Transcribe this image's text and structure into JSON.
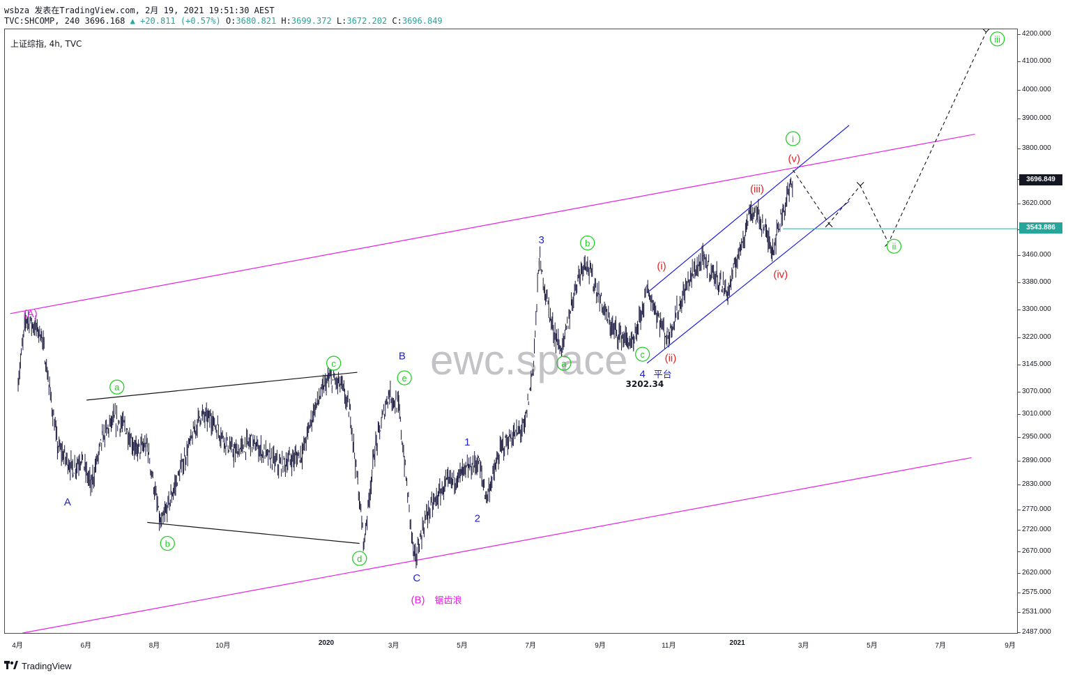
{
  "header": {
    "line1": "wsbza 发表在TradingView.com, 2月 19, 2021 19:51:30 AEST",
    "symbol": "TVC:SHCOMP, 240",
    "last": "3696.168",
    "arrow": "▲",
    "change": "+20.811 (+0.57%)",
    "o_label": "O:",
    "o": "3680.821",
    "h_label": "H:",
    "h": "3699.372",
    "l_label": "L:",
    "l": "3672.202",
    "c_label": "C:",
    "c": "3696.849"
  },
  "legend": "上证综指, 4h, TVC",
  "watermark": "ewc.space",
  "footer": {
    "brand": "TradingView"
  },
  "colors": {
    "candles": "#1a1a40",
    "channel": "#e620e6",
    "blue_channel": "#2020e0",
    "count_green": "#20d020",
    "count_blue": "#1f1fcc",
    "count_red": "#e52020",
    "count_magenta": "#e620e6",
    "hline": "#26a69a",
    "last_price_tag": "#131722"
  },
  "chart_data": {
    "type": "candlestick",
    "title": "上证综指, 4h, TVC",
    "x_ticks": [
      "4月",
      "6月",
      "8月",
      "10月",
      "2020",
      "3月",
      "5月",
      "7月",
      "9月",
      "11月",
      "2021",
      "3月",
      "5月",
      "7月",
      "9月"
    ],
    "y_ticks": [
      "4200.000",
      "4100.000",
      "4000.000",
      "3900.000",
      "3800.000",
      "3700.000",
      "3620.000",
      "3540.000",
      "3460.000",
      "3380.000",
      "3300.000",
      "3220.000",
      "3145.000",
      "3070.000",
      "3010.000",
      "2950.000",
      "2890.000",
      "2830.000",
      "2770.000",
      "2720.000",
      "2670.000",
      "2620.000",
      "2575.000",
      "2531.000",
      "2487.000"
    ],
    "y_scale": "log",
    "ylim": [
      2487,
      4220
    ],
    "price_tags": [
      {
        "value": "3696.849",
        "label": "last price",
        "color": "#131722"
      },
      {
        "value": "3543.886",
        "label": "horizontal level",
        "color": "#26a69a"
      }
    ],
    "price_path_keypoints": [
      [
        "2019-04-01",
        3100
      ],
      [
        "2019-04-08",
        3280
      ],
      [
        "2019-04-22",
        3230
      ],
      [
        "2019-04-29",
        3080
      ],
      [
        "2019-05-06",
        2930
      ],
      [
        "2019-05-20",
        2870
      ],
      [
        "2019-05-27",
        2900
      ],
      [
        "2019-06-05",
        2830
      ],
      [
        "2019-06-15",
        2950
      ],
      [
        "2019-06-25",
        3000
      ],
      [
        "2019-07-05",
        2980
      ],
      [
        "2019-07-15",
        2920
      ],
      [
        "2019-07-25",
        2930
      ],
      [
        "2019-08-06",
        2730
      ],
      [
        "2019-08-15",
        2800
      ],
      [
        "2019-09-10",
        3010
      ],
      [
        "2019-09-20",
        3000
      ],
      [
        "2019-10-10",
        2910
      ],
      [
        "2019-10-25",
        2940
      ],
      [
        "2019-11-20",
        2880
      ],
      [
        "2019-12-10",
        2910
      ],
      [
        "2019-12-20",
        3020
      ],
      [
        "2020-01-02",
        3110
      ],
      [
        "2020-01-14",
        3090
      ],
      [
        "2020-01-22",
        3010
      ],
      [
        "2020-02-03",
        2690
      ],
      [
        "2020-02-12",
        2910
      ],
      [
        "2020-02-25",
        3070
      ],
      [
        "2020-03-05",
        3030
      ],
      [
        "2020-03-19",
        2650
      ],
      [
        "2020-03-30",
        2760
      ],
      [
        "2020-04-15",
        2830
      ],
      [
        "2020-04-30",
        2860
      ],
      [
        "2020-05-15",
        2890
      ],
      [
        "2020-05-22",
        2800
      ],
      [
        "2020-06-05",
        2930
      ],
      [
        "2020-06-25",
        2980
      ],
      [
        "2020-07-03",
        3150
      ],
      [
        "2020-07-08",
        3450
      ],
      [
        "2020-07-20",
        3250
      ],
      [
        "2020-07-28",
        3180
      ],
      [
        "2020-08-10",
        3380
      ],
      [
        "2020-08-18",
        3450
      ],
      [
        "2020-09-10",
        3250
      ],
      [
        "2020-09-30",
        3200
      ],
      [
        "2020-10-12",
        3360
      ],
      [
        "2020-10-30",
        3220
      ],
      [
        "2020-11-20",
        3400
      ],
      [
        "2020-12-01",
        3450
      ],
      [
        "2020-12-23",
        3350
      ],
      [
        "2021-01-12",
        3600
      ],
      [
        "2021-01-20",
        3580
      ],
      [
        "2021-02-01",
        3480
      ],
      [
        "2021-02-10",
        3600
      ],
      [
        "2021-02-19",
        3700
      ]
    ],
    "projection": [
      [
        "2021-02-19",
        3731
      ],
      [
        "2021-03-23",
        3560
      ],
      [
        "2021-04-20",
        3680
      ],
      [
        "2021-05-15",
        3500
      ],
      [
        "2021-08-10",
        4210
      ]
    ],
    "trendlines": [
      {
        "name": "upper channel",
        "from": [
          "2019-03-25",
          3290
        ],
        "to": [
          "2021-07-31",
          3850
        ]
      },
      {
        "name": "lower channel",
        "from": [
          "2019-04-05",
          2487
        ],
        "to": [
          "2021-07-28",
          2900
        ]
      },
      {
        "name": "blue channel upper",
        "from": [
          "2020-10-12",
          3350
        ],
        "to": [
          "2021-04-10",
          3880
        ]
      },
      {
        "name": "blue channel lower",
        "from": [
          "2020-10-12",
          3150
        ],
        "to": [
          "2021-04-10",
          3630
        ]
      },
      {
        "name": "triangle upper",
        "from": [
          "2019-06-01",
          3050
        ],
        "to": [
          "2020-01-28",
          3125
        ]
      },
      {
        "name": "triangle lower",
        "from": [
          "2019-07-25",
          2740
        ],
        "to": [
          "2020-01-30",
          2690
        ]
      }
    ],
    "wave_labels": [
      {
        "text": "(A)",
        "color": "magenta",
        "circled": false,
        "date": "2019-04-12",
        "price": 3290
      },
      {
        "text": "A",
        "color": "blue",
        "circled": false,
        "date": "2019-05-15",
        "price": 2790
      },
      {
        "text": "a",
        "color": "green",
        "circled": true,
        "date": "2019-06-28",
        "price": 3085
      },
      {
        "text": "b",
        "color": "green",
        "circled": true,
        "date": "2019-08-12",
        "price": 2690
      },
      {
        "text": "c",
        "color": "green",
        "circled": true,
        "date": "2020-01-07",
        "price": 3150
      },
      {
        "text": "d",
        "color": "green",
        "circled": true,
        "date": "2020-01-30",
        "price": 2655
      },
      {
        "text": "B",
        "color": "blue",
        "circled": false,
        "date": "2020-03-08",
        "price": 3170
      },
      {
        "text": "e",
        "color": "green",
        "circled": true,
        "date": "2020-03-10",
        "price": 3110
      },
      {
        "text": "C",
        "color": "blue",
        "circled": false,
        "date": "2020-03-21",
        "price": 2610
      },
      {
        "text": "(B)",
        "color": "magenta",
        "circled": false,
        "date": "2020-03-22",
        "price": 2560,
        "note": "锯齿浪"
      },
      {
        "text": "1",
        "color": "blue",
        "circled": false,
        "date": "2020-05-05",
        "price": 2940
      },
      {
        "text": "2",
        "color": "blue",
        "circled": false,
        "date": "2020-05-14",
        "price": 2750
      },
      {
        "text": "3",
        "color": "blue",
        "circled": false,
        "date": "2020-07-10",
        "price": 3510
      },
      {
        "text": "a",
        "color": "green",
        "circled": true,
        "date": "2020-07-30",
        "price": 3150
      },
      {
        "text": "b",
        "color": "green",
        "circled": true,
        "date": "2020-08-20",
        "price": 3500
      },
      {
        "text": "c",
        "color": "green",
        "circled": true,
        "date": "2020-10-08",
        "price": 3175
      },
      {
        "text": "4",
        "color": "blue",
        "circled": false,
        "date": "2020-10-08",
        "price": 3120,
        "note": "平台"
      },
      {
        "text": "3202.34",
        "color": "black",
        "circled": false,
        "date": "2020-10-10",
        "price": 3095
      },
      {
        "text": "(i)",
        "color": "red",
        "circled": false,
        "date": "2020-10-25",
        "price": 3430
      },
      {
        "text": "(ii)",
        "color": "red",
        "circled": false,
        "date": "2020-11-02",
        "price": 3165
      },
      {
        "text": "(iii)",
        "color": "red",
        "circled": false,
        "date": "2021-01-18",
        "price": 3670
      },
      {
        "text": "(iv)",
        "color": "red",
        "circled": false,
        "date": "2021-02-08",
        "price": 3405
      },
      {
        "text": "(v)",
        "color": "red",
        "circled": false,
        "date": "2021-02-20",
        "price": 3768
      },
      {
        "text": "i",
        "color": "green",
        "circled": true,
        "date": "2021-02-19",
        "price": 3835
      },
      {
        "text": "ii",
        "color": "green",
        "circled": true,
        "date": "2021-05-20",
        "price": 3490
      },
      {
        "text": "iii",
        "color": "green",
        "circled": true,
        "date": "2021-08-20",
        "price": 4185
      }
    ]
  }
}
